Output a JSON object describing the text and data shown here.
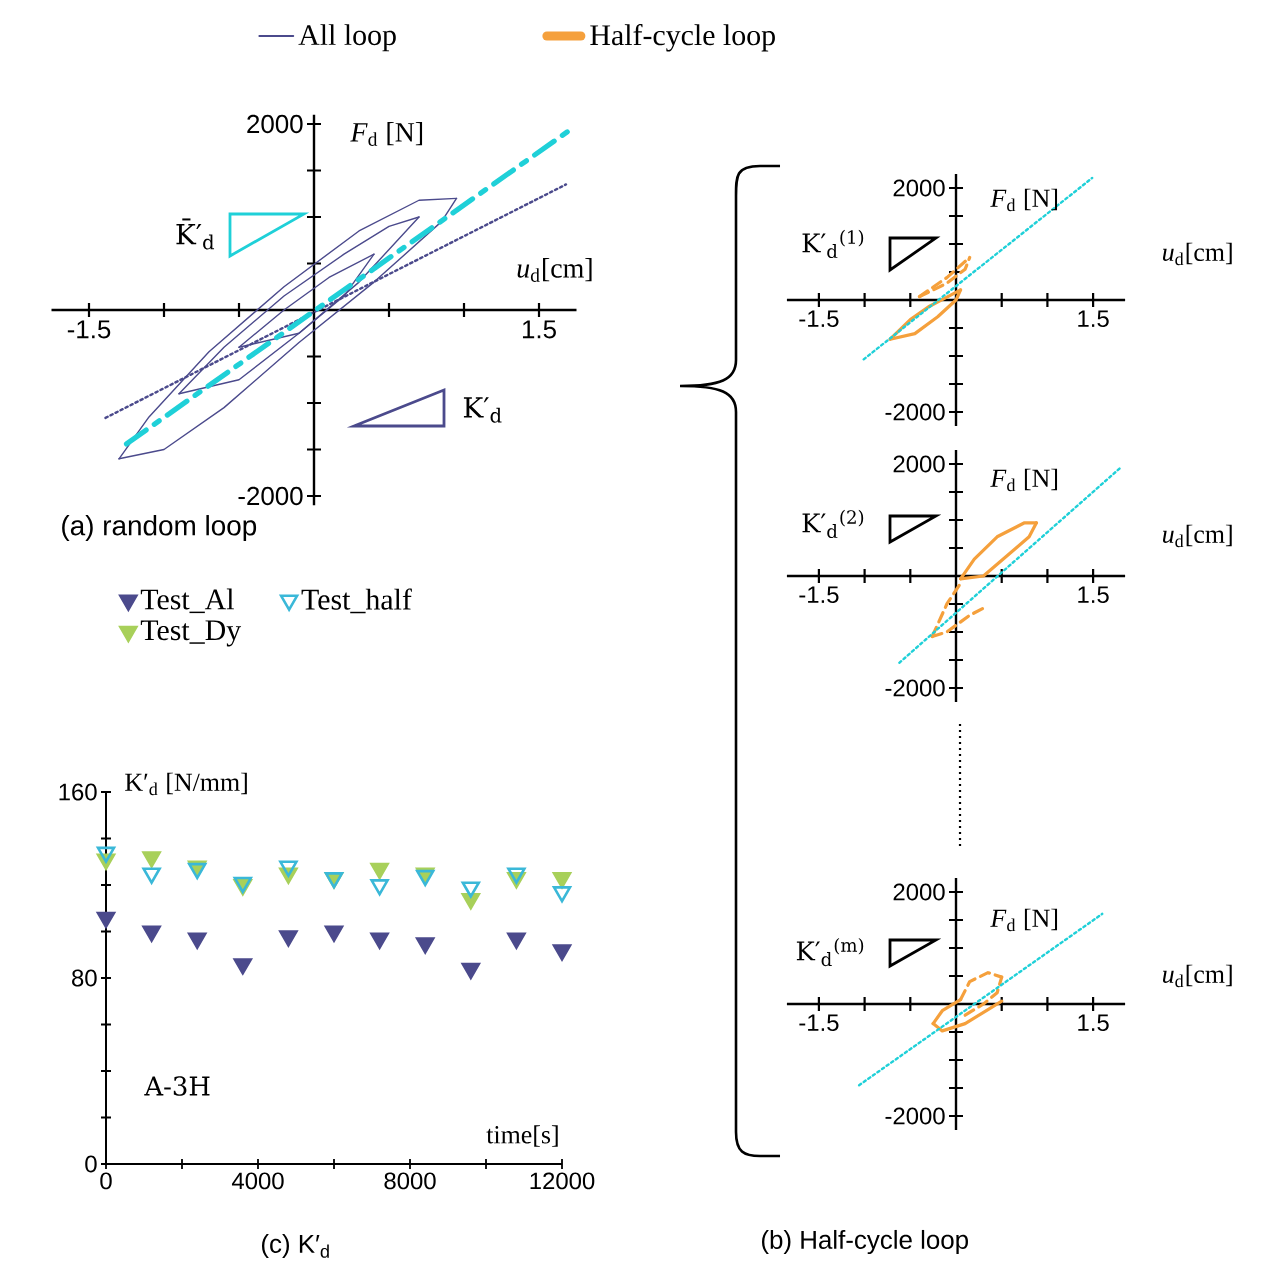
{
  "chart_data": [
    {
      "type": "line",
      "title": "(a) random loop",
      "xlabel": "*u*$_{d}$[cm]",
      "ylabel": "*F*$_{d}$ [N]",
      "xlim": [
        -1.75,
        1.75
      ],
      "ylim": [
        -2100,
        2100
      ],
      "legend": "top",
      "annotations": [
        "K̄′$_{d}$",
        "K′$_{d}$"
      ],
      "xticks": [
        -1.5,
        {
          "value": -1,
          "label": null
        },
        {
          "value": -0.5,
          "label": null
        },
        {
          "value": 0.5,
          "label": null
        },
        {
          "value": 1,
          "label": null
        },
        1.5
      ],
      "yticks": [
        -2000,
        {
          "value": -1500,
          "label": null
        },
        {
          "value": -1000,
          "label": null
        },
        {
          "value": -500,
          "label": null
        },
        {
          "value": 500,
          "label": null
        },
        {
          "value": 1000,
          "label": null
        },
        {
          "value": 1500,
          "label": null
        },
        2000
      ],
      "series": [
        {
          "name": "All loop",
          "color": "#4b4a8c",
          "x": [
            -1.3,
            -1.1,
            -0.7,
            -0.2,
            0.3,
            0.7,
            0.95
          ],
          "values": [
            -1600,
            -1150,
            -450,
            250,
            850,
            1180,
            1200
          ]
        },
        {
          "color": "#4b4a8c",
          "x": [
            -1.3,
            -1.0,
            -0.6,
            -0.1,
            0.4,
            0.85,
            0.95
          ],
          "values": [
            -1600,
            -1500,
            -1050,
            -350,
            300,
            950,
            1200
          ]
        },
        {
          "color": "#4b4a8c",
          "x": [
            -0.9,
            -0.6,
            -0.2,
            0.2,
            0.5,
            0.7
          ],
          "values": [
            -900,
            -400,
            150,
            600,
            900,
            1000
          ]
        },
        {
          "color": "#4b4a8c",
          "x": [
            -0.9,
            -0.5,
            -0.1,
            0.3,
            0.7
          ],
          "values": [
            -900,
            -750,
            -250,
            300,
            1000
          ]
        },
        {
          "color": "#4b4a8c",
          "x": [
            -0.5,
            -0.2,
            0.1,
            0.4
          ],
          "values": [
            -400,
            0,
            350,
            600
          ]
        },
        {
          "color": "#4b4a8c",
          "x": [
            -0.5,
            -0.1,
            0.2,
            0.4
          ],
          "values": [
            -400,
            -250,
            150,
            600
          ]
        },
        {
          "color": "#4b4a8c",
          "line_style": "dotted",
          "x": [
            -1.39,
            1.68
          ],
          "values": [
            -1160,
            1350
          ]
        },
        {
          "color": "#1fd0d8",
          "line_style": "dashdot",
          "x": [
            -1.25,
            1.71
          ],
          "values": [
            -1440,
            1940
          ]
        }
      ]
    },
    {
      "type": "line",
      "xlabel": "*u*$_{d}$[cm]",
      "ylabel": "*F*$_{d}$ [N]",
      "xlim": [
        -1.85,
        1.85
      ],
      "ylim": [
        -2250,
        2250
      ],
      "legend": "top",
      "annotations": [
        "K′$_{d}$$^{(1)}$"
      ],
      "xticks": [
        -1.5,
        {
          "value": -1,
          "label": null
        },
        {
          "value": -0.5,
          "label": null
        },
        {
          "value": 0.5,
          "label": null
        },
        {
          "value": 1,
          "label": null
        },
        1.5
      ],
      "yticks": [
        -2000,
        {
          "value": -1500,
          "label": null
        },
        {
          "value": -1000,
          "label": null
        },
        {
          "value": -500,
          "label": null
        },
        {
          "value": 500,
          "label": null
        },
        {
          "value": 1000,
          "label": null
        },
        {
          "value": 1500,
          "label": null
        },
        2000
      ],
      "series": [
        {
          "name": "Half-cycle loop",
          "color": "#f5a03c",
          "x": [
            -0.72,
            -0.5,
            -0.3,
            -0.1,
            0.05
          ],
          "values": [
            -700,
            -350,
            -120,
            50,
            180
          ]
        },
        {
          "color": "#f5a03c",
          "x": [
            -0.72,
            -0.45,
            -0.2,
            0,
            0.05
          ],
          "values": [
            -700,
            -600,
            -300,
            0,
            180
          ]
        },
        {
          "color": "#f5a03c",
          "line_style": "dashed",
          "x": [
            -0.4,
            -0.1,
            0.15
          ],
          "values": [
            60,
            400,
            760
          ]
        },
        {
          "color": "#f5a03c",
          "line_style": "dashed",
          "x": [
            -0.4,
            -0.1,
            0.1,
            0.15
          ],
          "values": [
            60,
            300,
            550,
            760
          ]
        },
        {
          "color": "#1fd0d8",
          "line_style": "dotted",
          "x": [
            -1.01,
            1.49
          ],
          "values": [
            -1060,
            2180
          ]
        }
      ]
    },
    {
      "type": "line",
      "xlabel": "*u*$_{d}$[cm]",
      "ylabel": "*F*$_{d}$ [N]",
      "xlim": [
        -1.85,
        1.85
      ],
      "ylim": [
        -2250,
        2250
      ],
      "annotations": [
        "K′$_{d}$$^{(2)}$"
      ],
      "xticks": [
        -1.5,
        {
          "value": -1,
          "label": null
        },
        {
          "value": -0.5,
          "label": null
        },
        {
          "value": 0.5,
          "label": null
        },
        {
          "value": 1,
          "label": null
        },
        1.5
      ],
      "yticks": [
        -2000,
        {
          "value": -1500,
          "label": null
        },
        {
          "value": -1000,
          "label": null
        },
        {
          "value": -500,
          "label": null
        },
        {
          "value": 500,
          "label": null
        },
        {
          "value": 1000,
          "label": null
        },
        {
          "value": 1500,
          "label": null
        },
        2000
      ],
      "series": [
        {
          "color": "#f5a03c",
          "x": [
            0.05,
            0.2,
            0.45,
            0.75,
            0.88
          ],
          "values": [
            -50,
            300,
            700,
            950,
            950
          ]
        },
        {
          "color": "#f5a03c",
          "x": [
            0.05,
            0.3,
            0.55,
            0.8,
            0.88
          ],
          "values": [
            -50,
            0,
            350,
            700,
            950
          ]
        },
        {
          "color": "#f5a03c",
          "line_style": "dashed",
          "x": [
            -0.26,
            -0.1,
            0.07
          ],
          "values": [
            -1080,
            -500,
            -80
          ]
        },
        {
          "color": "#f5a03c",
          "line_style": "dashed",
          "x": [
            -0.26,
            -0.1,
            0.15,
            0.33
          ],
          "values": [
            -1080,
            -1000,
            -700,
            -550
          ]
        },
        {
          "color": "#1fd0d8",
          "line_style": "dotted",
          "x": [
            -0.62,
            1.79
          ],
          "values": [
            -1550,
            1920
          ]
        }
      ]
    },
    {
      "type": "line",
      "title": "(b) Half-cycle loop",
      "xlabel": "*u*$_{d}$[cm]",
      "ylabel": "*F*$_{d}$ [N]",
      "xlim": [
        -1.85,
        1.85
      ],
      "ylim": [
        -2250,
        2250
      ],
      "annotations": [
        "K′$_{d}$$^{(m)}$"
      ],
      "xticks": [
        -1.5,
        {
          "value": -1,
          "label": null
        },
        {
          "value": -0.5,
          "label": null
        },
        {
          "value": 0.5,
          "label": null
        },
        {
          "value": 1,
          "label": null
        },
        1.5
      ],
      "yticks": [
        -2000,
        {
          "value": -1500,
          "label": null
        },
        {
          "value": -1000,
          "label": null
        },
        {
          "value": -500,
          "label": null
        },
        {
          "value": 500,
          "label": null
        },
        {
          "value": 1000,
          "label": null
        },
        {
          "value": 1500,
          "label": null
        },
        2000
      ],
      "series": [
        {
          "color": "#f5a03c",
          "x": [
            -0.25,
            -0.15,
            0.05
          ],
          "values": [
            -350,
            -120,
            80
          ]
        },
        {
          "color": "#f5a03c",
          "x": [
            -0.25,
            -0.15,
            0.1,
            0.35,
            0.5
          ],
          "values": [
            -350,
            -480,
            -350,
            -100,
            50
          ]
        },
        {
          "color": "#f5a03c",
          "line_style": "dashed",
          "x": [
            0.05,
            0.15,
            0.35,
            0.5
          ],
          "values": [
            80,
            400,
            560,
            480
          ]
        },
        {
          "color": "#f5a03c",
          "line_style": "dashed",
          "x": [
            0.1,
            0.3,
            0.45,
            0.5
          ],
          "values": [
            -200,
            0,
            200,
            480
          ]
        },
        {
          "color": "#1fd0d8",
          "line_style": "dotted",
          "x": [
            -1.06,
            1.6
          ],
          "values": [
            -1450,
            1610
          ]
        }
      ]
    },
    {
      "type": "scatter",
      "title": "(c) K′$_{d}$",
      "xlabel": "time[s]",
      "ylabel": "K′$_{d}$ [N/mm]",
      "xlim": [
        0,
        12000
      ],
      "ylim": [
        0,
        160
      ],
      "legend": "top left",
      "marker": "triangle",
      "annotations": [
        "A-3H"
      ],
      "xticks": [
        0,
        {
          "value": 2000,
          "label": null
        },
        4000,
        {
          "value": 6000,
          "label": null
        },
        8000,
        {
          "value": 10000,
          "label": null
        },
        12000
      ],
      "yticks": [
        0,
        {
          "value": 20,
          "label": null
        },
        {
          "value": 40,
          "label": null
        },
        {
          "value": 60,
          "label": null
        },
        80,
        {
          "value": 100,
          "label": null
        },
        {
          "value": 120,
          "label": null
        },
        {
          "value": 140,
          "label": null
        },
        160
      ],
      "x": [
        0,
        1200,
        2400,
        3600,
        4800,
        6000,
        7200,
        8400,
        9600,
        10800,
        12000
      ],
      "series": [
        {
          "name": "Test_Al",
          "color": "#4b4a8c",
          "values": [
            106,
            100,
            97,
            86,
            98,
            100,
            97,
            95,
            84,
            97,
            92
          ]
        },
        {
          "name": "Test_Dy",
          "color": "#a8d05a",
          "values": [
            131,
            132,
            128,
            120,
            125,
            123,
            127,
            125,
            114,
            123,
            123
          ]
        },
        {
          "name": "Test_half",
          "color": "#3ab8d8",
          "values": [
            134,
            125,
            127,
            121,
            128,
            123,
            120,
            124,
            119,
            125,
            117
          ]
        }
      ]
    }
  ]
}
